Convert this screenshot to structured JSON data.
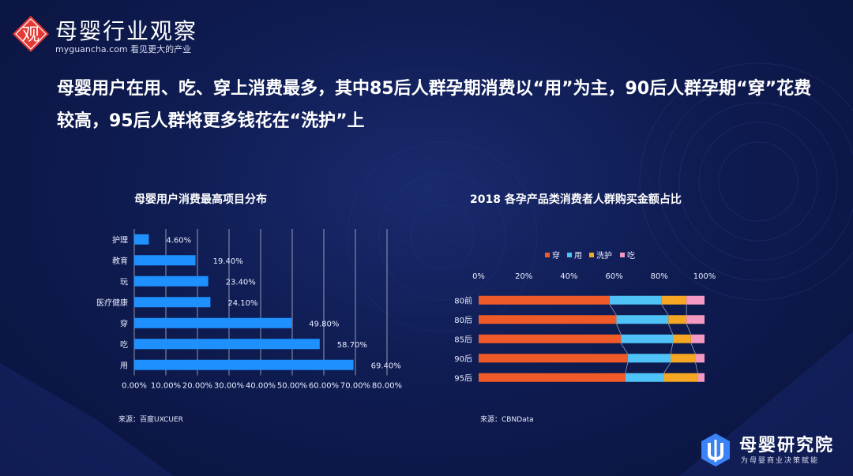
{
  "brand": {
    "logo_char": "观",
    "title": "母婴行业观察",
    "subtitle": "myguancha.com 看见更大的产业"
  },
  "headline": "母婴用户在用、吃、穿上消费最多，其中85后人群孕期消费以“用”为主，90后人群孕期“穿”花费较高，95后人群将更多钱花在“洗护”上",
  "colors": {
    "bar_blue": "#1e90ff",
    "wear": "#f05a28",
    "use": "#4fc3f7",
    "care": "#f5a623",
    "eat": "#f49ac2"
  },
  "chart_data": [
    {
      "type": "bar",
      "orientation": "horizontal",
      "title": "母婴用户消费最高项目分布",
      "categories": [
        "护理",
        "教育",
        "玩",
        "医疗健康",
        "穿",
        "吃",
        "用"
      ],
      "values": [
        4.6,
        19.4,
        23.4,
        24.1,
        49.8,
        58.7,
        69.4
      ],
      "value_labels": [
        "4.60%",
        "19.40%",
        "23.40%",
        "24.10%",
        "49.80%",
        "58.70%",
        "69.40%"
      ],
      "xlim": [
        0,
        80
      ],
      "xticks": [
        "0.00%",
        "10.00%",
        "20.00%",
        "30.00%",
        "40.00%",
        "50.00%",
        "60.00%",
        "70.00%",
        "80.00%"
      ],
      "grid": true,
      "source": "来源：百度UXCUER"
    },
    {
      "type": "bar",
      "orientation": "horizontal",
      "stacked": "percent",
      "title": "2018 各孕产品类消费者人群购买金额占比",
      "categories": [
        "80前",
        "80后",
        "85后",
        "90后",
        "95后"
      ],
      "series": [
        {
          "name": "穿",
          "values": [
            58,
            61,
            63,
            66,
            65
          ]
        },
        {
          "name": "用",
          "values": [
            23,
            23,
            23,
            19,
            17
          ]
        },
        {
          "name": "洗护",
          "values": [
            11,
            8,
            8,
            11,
            15
          ]
        },
        {
          "name": "吃",
          "values": [
            8,
            8,
            6,
            4,
            3
          ]
        }
      ],
      "xlim": [
        0,
        100
      ],
      "xticks": [
        "0%",
        "20%",
        "40%",
        "60%",
        "80%",
        "100%"
      ],
      "legend_position": "top",
      "source": "来源：CBNData"
    }
  ],
  "footer_brand": {
    "title": "母婴研究院",
    "subtitle": "为母婴商业决策赋能"
  }
}
